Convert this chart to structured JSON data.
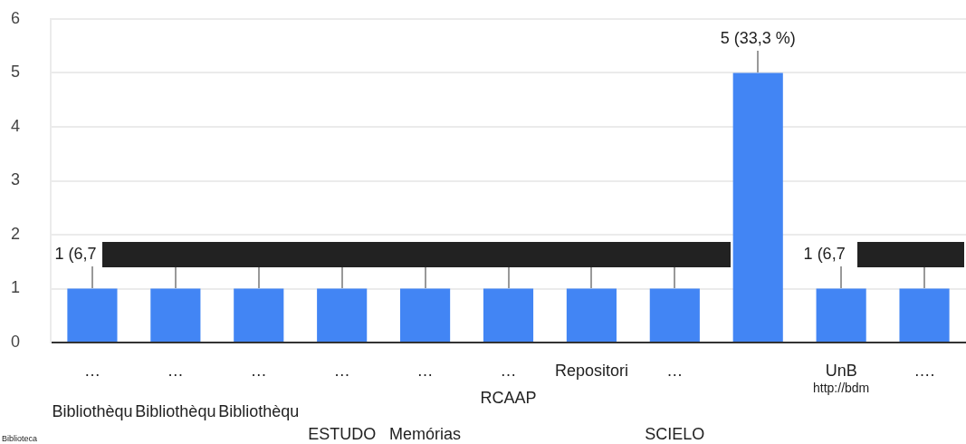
{
  "chart_data": {
    "type": "bar",
    "categories": [
      "…\nBibliothèqu",
      "…\nBibliothèqu",
      "…\nBibliothèqu",
      "…\nESTUDO",
      "…\nMemórias",
      "…\nRCAAP",
      "Repositori",
      "…\nSCIELO",
      null,
      "UnB\nhttp://bdm",
      "…."
    ],
    "values": [
      1,
      1,
      1,
      1,
      1,
      1,
      1,
      1,
      5,
      1,
      1
    ],
    "color": "#4285f4",
    "ylim": [
      0,
      6
    ],
    "yticks": [
      0,
      1,
      2,
      3,
      4,
      5,
      6
    ],
    "grid": "y",
    "value_labels": [
      "1 (6,7",
      null,
      null,
      null,
      null,
      null,
      null,
      null,
      "5 (33,3 %)",
      "1 (6,7",
      null
    ],
    "annotations": [
      "Biblioteca"
    ]
  }
}
